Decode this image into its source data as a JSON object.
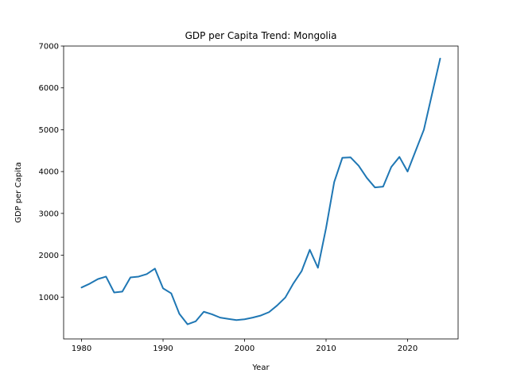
{
  "chart_data": {
    "type": "line",
    "title": "GDP per Capita Trend: Mongolia",
    "xlabel": "Year",
    "ylabel": "GDP per Capita",
    "xlim": [
      1977.8,
      2026.2
    ],
    "ylim": [
      0,
      7000
    ],
    "xticks": [
      1980,
      1990,
      2000,
      2010,
      2020
    ],
    "yticks": [
      1000,
      2000,
      3000,
      4000,
      5000,
      6000,
      7000
    ],
    "grid": false,
    "line_color": "#1f77b4",
    "series": [
      {
        "x": [
          1980,
          1981,
          1982,
          1983,
          1984,
          1985,
          1986,
          1987,
          1988,
          1989,
          1990,
          1991,
          1992,
          1993,
          1994,
          1995,
          1996,
          1997,
          1998,
          1999,
          2000,
          2001,
          2002,
          2003,
          2004,
          2005,
          2006,
          2007,
          2008,
          2009,
          2010,
          2011,
          2012,
          2013,
          2014,
          2015,
          2016,
          2017,
          2018,
          2019,
          2020,
          2021,
          2022,
          2023,
          2024
        ],
        "y": [
          1230,
          1320,
          1430,
          1490,
          1110,
          1130,
          1470,
          1490,
          1550,
          1680,
          1210,
          1090,
          600,
          350,
          420,
          650,
          590,
          510,
          480,
          450,
          470,
          510,
          560,
          640,
          800,
          990,
          1330,
          1620,
          2130,
          1700,
          2650,
          3750,
          4330,
          4340,
          4140,
          3850,
          3620,
          3640,
          4110,
          4350,
          4000,
          4500,
          5000,
          5850,
          6700
        ]
      }
    ]
  }
}
